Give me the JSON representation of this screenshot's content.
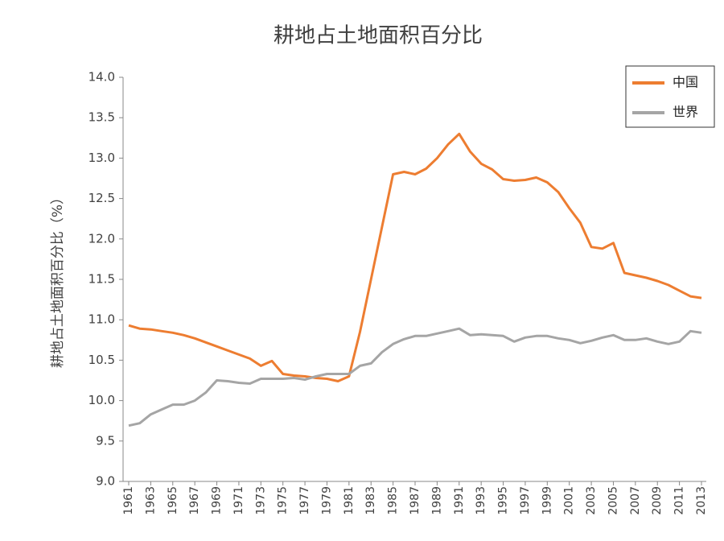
{
  "chart_data": {
    "type": "line",
    "title": "耕地占土地面积百分比",
    "y_label": "耕地占土地面积百分比（%）",
    "x": [
      1961,
      1962,
      1963,
      1964,
      1965,
      1966,
      1967,
      1968,
      1969,
      1970,
      1971,
      1972,
      1973,
      1974,
      1975,
      1976,
      1977,
      1978,
      1979,
      1980,
      1981,
      1982,
      1983,
      1984,
      1985,
      1986,
      1987,
      1988,
      1989,
      1990,
      1991,
      1992,
      1993,
      1994,
      1995,
      1996,
      1997,
      1998,
      1999,
      2000,
      2001,
      2002,
      2003,
      2004,
      2005,
      2006,
      2007,
      2008,
      2009,
      2010,
      2011,
      2012,
      2013
    ],
    "series": [
      {
        "name": "中国",
        "color": "#ed7d31",
        "values": [
          10.93,
          10.89,
          10.88,
          10.86,
          10.84,
          10.81,
          10.77,
          10.72,
          10.67,
          10.62,
          10.57,
          10.52,
          10.43,
          10.49,
          10.33,
          10.31,
          10.3,
          10.28,
          10.27,
          10.24,
          10.3,
          10.85,
          11.5,
          12.15,
          12.8,
          12.83,
          12.8,
          12.87,
          13.0,
          13.17,
          13.3,
          13.08,
          12.93,
          12.86,
          12.74,
          12.72,
          12.73,
          12.76,
          12.7,
          12.58,
          12.38,
          12.2,
          11.9,
          11.88,
          11.95,
          11.58,
          11.55,
          11.52,
          11.48,
          11.43,
          11.36,
          11.29,
          11.27
        ]
      },
      {
        "name": "世界",
        "color": "#a5a5a5",
        "values": [
          9.69,
          9.72,
          9.83,
          9.89,
          9.95,
          9.95,
          10.0,
          10.1,
          10.25,
          10.24,
          10.22,
          10.21,
          10.27,
          10.27,
          10.27,
          10.28,
          10.26,
          10.3,
          10.33,
          10.33,
          10.33,
          10.43,
          10.46,
          10.6,
          10.7,
          10.76,
          10.8,
          10.8,
          10.83,
          10.86,
          10.89,
          10.81,
          10.82,
          10.81,
          10.8,
          10.73,
          10.78,
          10.8,
          10.8,
          10.77,
          10.75,
          10.71,
          10.74,
          10.78,
          10.81,
          10.75,
          10.75,
          10.77,
          10.73,
          10.7,
          10.73,
          10.86,
          10.84
        ]
      }
    ],
    "xlim": [
      1961,
      2013
    ],
    "xticks": [
      1961,
      1963,
      1965,
      1967,
      1969,
      1971,
      1973,
      1975,
      1977,
      1979,
      1981,
      1983,
      1985,
      1987,
      1989,
      1991,
      1993,
      1995,
      1997,
      1999,
      2001,
      2003,
      2005,
      2007,
      2009,
      2011,
      2013
    ],
    "ylim": [
      9,
      14
    ],
    "yticks": [
      {
        "value": 9,
        "label": "9.0"
      },
      9.5,
      {
        "value": 10,
        "label": "10.0"
      },
      10.5,
      {
        "value": 11,
        "label": "11.0"
      },
      11.5,
      {
        "value": 12,
        "label": "12.0"
      },
      12.5,
      {
        "value": 13,
        "label": "13.0"
      },
      13.5,
      {
        "value": 14,
        "label": "14.0"
      }
    ],
    "legend": "top-right"
  }
}
